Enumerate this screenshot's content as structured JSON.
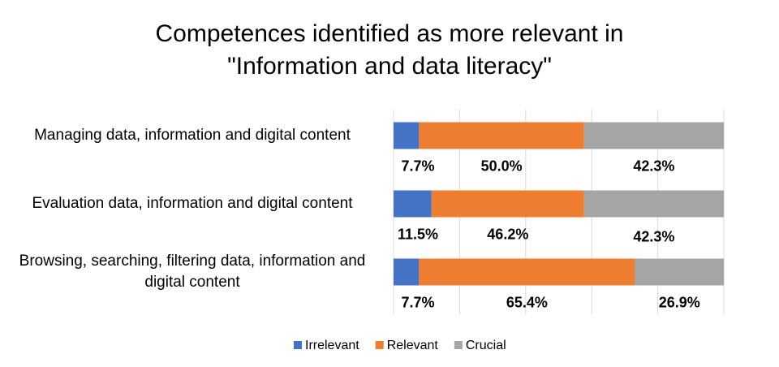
{
  "chart_data": {
    "type": "stacked-bar-horizontal",
    "title": "Competences identified as more relevant in\n\"Information and data literacy\"",
    "categories": [
      "Managing data, information and digital content",
      "Evaluation data, information and digital content",
      "Browsing, searching, filtering data, information and digital content"
    ],
    "series": [
      {
        "name": "Irrelevant",
        "color": "#4472c4",
        "values": [
          7.7,
          11.5,
          7.7
        ],
        "value_labels": [
          "7.7%",
          "11.5%",
          "7.7%"
        ]
      },
      {
        "name": "Relevant",
        "color": "#ed7d31",
        "values": [
          50.0,
          46.2,
          65.4
        ],
        "value_labels": [
          "50.0%",
          "46.2%",
          "65.4%"
        ]
      },
      {
        "name": "Crucial",
        "color": "#a5a5a5",
        "values": [
          42.3,
          42.3,
          26.9
        ],
        "value_labels": [
          "42.3%",
          "42.3%",
          "26.9%"
        ]
      }
    ],
    "xlim": [
      0,
      100
    ],
    "xticks": [
      0,
      20,
      40,
      60,
      80,
      100
    ],
    "grid": true,
    "legend": "bottom"
  }
}
